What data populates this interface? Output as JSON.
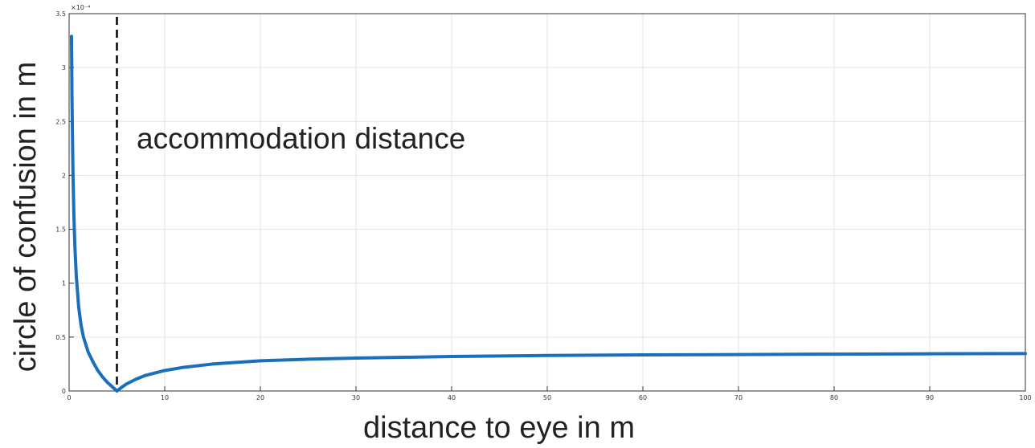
{
  "chart_data": {
    "type": "line",
    "xlabel": "distance to eye in m",
    "ylabel": "circle of confusion in m",
    "xlim": [
      0,
      100
    ],
    "ylim": [
      0,
      3.5
    ],
    "y_exponent": "×10⁻⁴",
    "x_ticks": [
      "0",
      "10",
      "20",
      "30",
      "40",
      "50",
      "60",
      "70",
      "80",
      "90",
      "100"
    ],
    "y_ticks": [
      "0",
      "0.5",
      "1",
      "1.5",
      "2",
      "2.5",
      "3",
      "3.5"
    ],
    "grid": true,
    "accommodation_distance": 5,
    "annotation": "accommodation distance",
    "colors": {
      "curve": "#1a6fbd",
      "grid": "#e3e3e3",
      "axis": "#333333",
      "marker": "#000000"
    },
    "series": [
      {
        "x": [
          0.25,
          0.3,
          0.4,
          0.5,
          0.6,
          0.75,
          1,
          1.25,
          1.5,
          2,
          2.5,
          3,
          3.5,
          4,
          4.5,
          5,
          5.5,
          6,
          7,
          8,
          10,
          12,
          15,
          20,
          25,
          30,
          40,
          50,
          60,
          70,
          80,
          90,
          100
        ],
        "y": [
          3.29,
          2.73,
          2.04,
          1.63,
          1.35,
          1.07,
          0.78,
          0.61,
          0.5,
          0.36,
          0.27,
          0.19,
          0.13,
          0.08,
          0.04,
          0.0,
          0.035,
          0.065,
          0.11,
          0.145,
          0.19,
          0.22,
          0.25,
          0.28,
          0.295,
          0.305,
          0.32,
          0.33,
          0.335,
          0.338,
          0.342,
          0.345,
          0.347
        ]
      }
    ]
  }
}
